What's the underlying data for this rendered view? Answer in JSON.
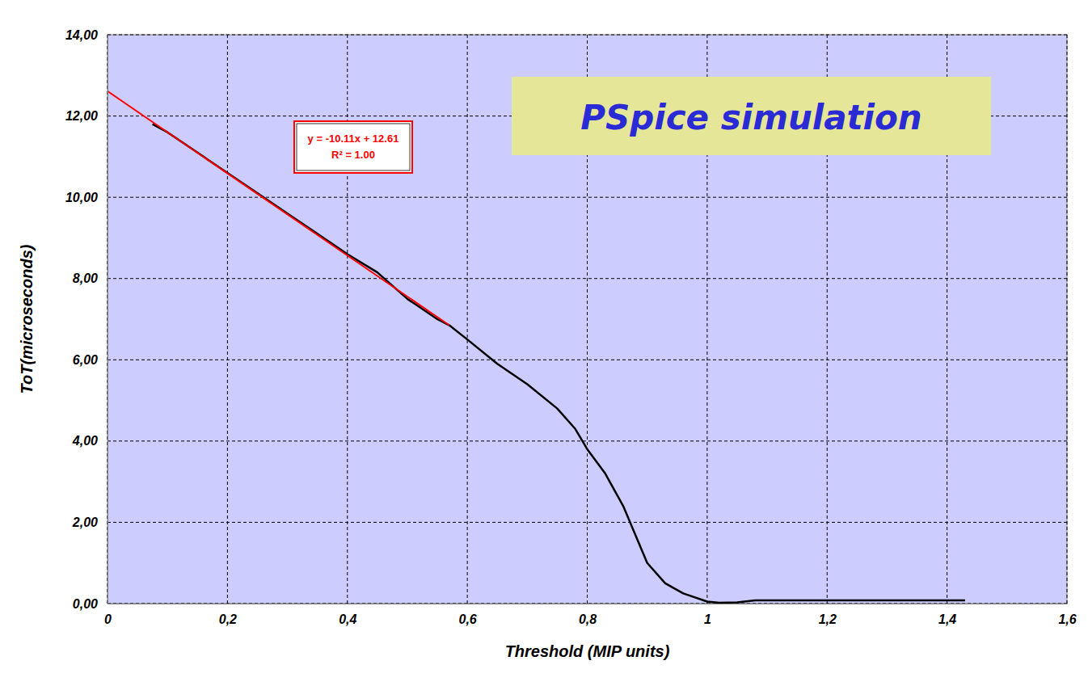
{
  "chart_data": {
    "type": "line",
    "x_label": "Threshold (MIP units)",
    "y_label": "ToT(microseconds)",
    "annotations": [
      "PSpice simulation",
      "y = -10.11x + 12.61",
      "R² = 1.00"
    ],
    "series": [
      {
        "color": "#000000",
        "x": [
          0.075,
          0.1,
          0.15,
          0.2,
          0.25,
          0.3,
          0.35,
          0.4,
          0.45,
          0.5,
          0.55,
          0.57,
          0.6,
          0.65,
          0.7,
          0.75,
          0.78,
          0.8,
          0.83,
          0.86,
          0.88,
          0.9,
          0.93,
          0.96,
          1.0,
          1.02,
          1.05,
          1.08,
          1.2,
          1.3,
          1.43
        ],
        "values": [
          11.8,
          11.6,
          11.1,
          10.6,
          10.1,
          9.6,
          9.1,
          8.6,
          8.15,
          7.5,
          7.0,
          6.85,
          6.5,
          5.9,
          5.4,
          4.8,
          4.3,
          3.8,
          3.2,
          2.4,
          1.7,
          1.0,
          0.5,
          0.25,
          0.05,
          0.02,
          0.03,
          0.08,
          0.08,
          0.08,
          0.08
        ]
      },
      {
        "color": "#ff0000",
        "x": [
          0,
          0.57
        ],
        "values": [
          12.61,
          6.85
        ]
      }
    ],
    "xlim": [
      0,
      1.6
    ],
    "ylim": [
      0,
      14
    ],
    "xticks": [
      0,
      {
        "value": 0.2,
        "label": "0,2"
      },
      {
        "value": 0.4,
        "label": "0,4"
      },
      {
        "value": 0.6,
        "label": "0,6"
      },
      {
        "value": 0.8,
        "label": "0,8"
      },
      1,
      {
        "value": 1.2,
        "label": "1,2"
      },
      {
        "value": 1.4,
        "label": "1,4"
      },
      {
        "value": 1.6,
        "label": "1,6"
      }
    ],
    "yticks": [
      {
        "value": 0,
        "label": "0,00"
      },
      {
        "value": 2,
        "label": "2,00"
      },
      {
        "value": 4,
        "label": "4,00"
      },
      {
        "value": 6,
        "label": "6,00"
      },
      {
        "value": 8,
        "label": "8,00"
      },
      {
        "value": 10,
        "label": "10,00"
      },
      {
        "value": 12,
        "label": "12,00"
      },
      {
        "value": 14,
        "label": "14,00"
      }
    ],
    "grid": true
  }
}
